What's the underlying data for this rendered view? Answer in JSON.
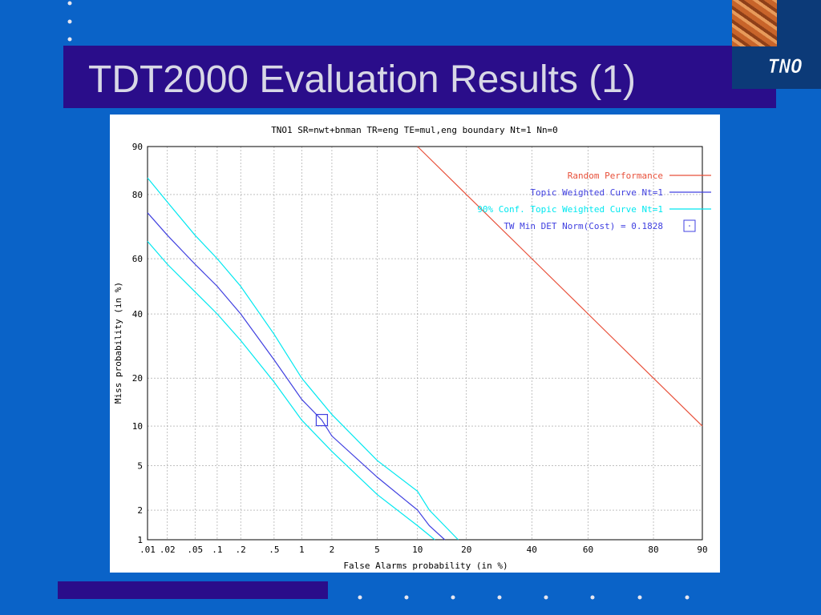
{
  "slide": {
    "title": "TDT2000 Evaluation Results (1)",
    "logo_text": "TNO"
  },
  "colors": {
    "background": "#0a63c8",
    "title_bar": "#2a0d8a",
    "random": "#e8503a",
    "topic": "#4040e0",
    "conf": "#00e8f0",
    "min_marker": "#4040e0"
  },
  "chart_data": {
    "type": "line",
    "title": "TNO1 SR=nwt+bnman TR=eng TE=mul,eng boundary Nt=1 Nn=0",
    "xlabel": "False Alarms probability (in %)",
    "ylabel": "Miss probability (in %)",
    "xscale": "normal-deviate",
    "yscale": "normal-deviate",
    "xlim": [
      0.01,
      90
    ],
    "ylim": [
      1,
      90
    ],
    "x_ticks": [
      ".01",
      ".02",
      ".05",
      ".1",
      ".2",
      ".5",
      "1",
      "2",
      "5",
      "10",
      "20",
      "40",
      "60",
      "80",
      "90"
    ],
    "x_tick_values": [
      0.01,
      0.02,
      0.05,
      0.1,
      0.2,
      0.5,
      1,
      2,
      5,
      10,
      20,
      40,
      60,
      80,
      90
    ],
    "y_ticks": [
      "1",
      "2",
      "5",
      "10",
      "20",
      "40",
      "60",
      "80",
      "90"
    ],
    "y_tick_values": [
      1,
      2,
      5,
      10,
      20,
      40,
      60,
      80,
      90
    ],
    "grid": true,
    "legend_position": "top-right",
    "series": [
      {
        "name": "Random Performance",
        "color": "#e8503a",
        "x": [
          10,
          20,
          40,
          60,
          80,
          90
        ],
        "y": [
          90,
          80,
          60,
          40,
          20,
          10
        ]
      },
      {
        "name": "Topic Weighted Curve Nt=1",
        "color": "#4040e0",
        "x": [
          0.01,
          0.02,
          0.05,
          0.1,
          0.2,
          0.5,
          1,
          1.6,
          2,
          5,
          10,
          12,
          15
        ],
        "y": [
          75,
          68,
          58,
          50,
          40,
          25,
          15,
          11,
          8.5,
          4,
          2,
          1.4,
          1
        ]
      },
      {
        "name": "90% Conf. Topic Weighted Curve Nt=1",
        "color": "#00e8f0",
        "x": [
          0.01,
          0.02,
          0.05,
          0.1,
          0.2,
          0.5,
          1,
          2,
          5,
          10,
          12,
          18
        ],
        "y": [
          84,
          78,
          68,
          60,
          50,
          33,
          20,
          12,
          5.5,
          3,
          2,
          1
        ]
      },
      {
        "name": "",
        "color": "#00e8f0",
        "x": [
          0.01,
          0.02,
          0.05,
          0.1,
          0.2,
          0.5,
          1,
          2,
          5,
          10,
          13
        ],
        "y": [
          66,
          58,
          48,
          40,
          31,
          19,
          11,
          6.5,
          2.8,
          1.4,
          1
        ]
      }
    ],
    "min_dcf": {
      "label": "TW Min DET Norm(Cost) = 0.1828",
      "x": 1.6,
      "y": 11
    }
  }
}
